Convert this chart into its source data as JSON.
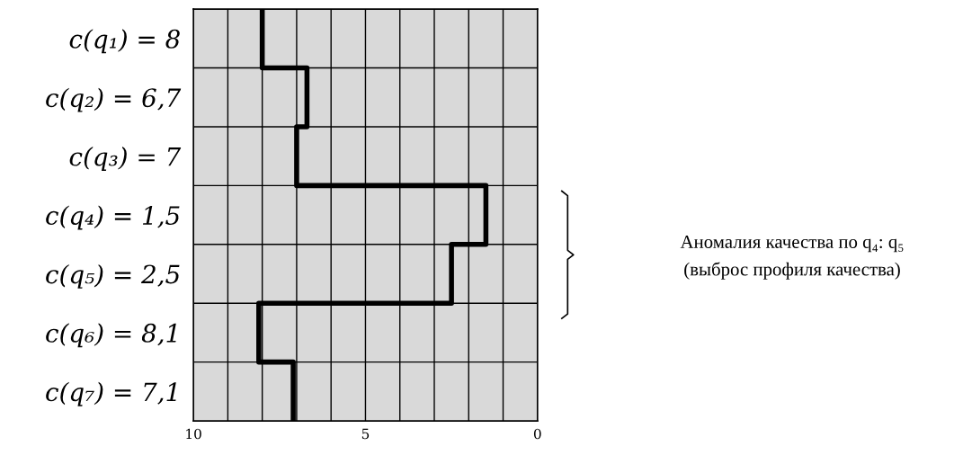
{
  "chart_data": {
    "type": "step",
    "orientation": "horizontal",
    "categories": [
      "c(q₁) = 8",
      "c(q₂) = 6,7",
      "c(q₃) = 7",
      "c(q₄) = 1,5",
      "c(q₅) = 2,5",
      "c(q₆) = 8,1",
      "c(q₇) = 7,1"
    ],
    "series": [
      {
        "color": "#000000",
        "values": [
          8,
          6.7,
          7,
          1.5,
          2.5,
          8.1,
          7.1
        ]
      }
    ],
    "xlim": [
      10,
      0
    ],
    "xticks": [
      10,
      {
        "value": 9,
        "label": null
      },
      {
        "value": 8,
        "label": null
      },
      {
        "value": 7,
        "label": null
      },
      {
        "value": 6,
        "label": null
      },
      5,
      {
        "value": 4,
        "label": null
      },
      {
        "value": 3,
        "label": null
      },
      {
        "value": 2,
        "label": null
      },
      {
        "value": 1,
        "label": null
      },
      0
    ],
    "grid": true,
    "annotations": [
      "Аномалия качества по q₄: q₅",
      "(выброс профиля качества)"
    ]
  }
}
